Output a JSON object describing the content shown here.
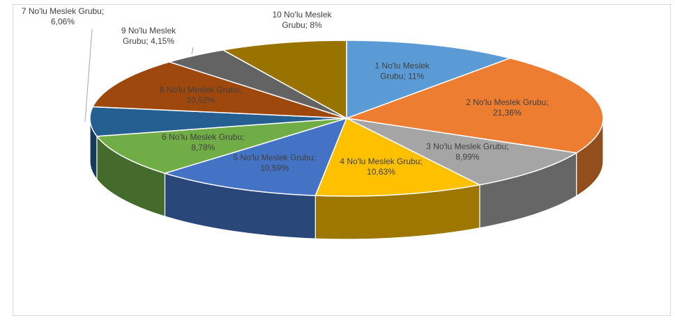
{
  "chart_data": {
    "type": "pie",
    "style": "3d",
    "title": "",
    "slices": [
      {
        "name": "1 No'lu Meslek Grubu",
        "value": 11,
        "label_line1": "1 No'lu Meslek",
        "label_line2": "Grubu; 11%",
        "color": "#5b9bd5"
      },
      {
        "name": "2 No'lu Meslek Grubu",
        "value": 21.36,
        "label_line1": "2 No'lu Meslek Grubu;",
        "label_line2": "21,36%",
        "color": "#ed7d31"
      },
      {
        "name": "3 No'lu Meslek Grubu",
        "value": 8.99,
        "label_line1": "3 No'lu Meslek Grubu;",
        "label_line2": "8,99%",
        "color": "#a5a5a5"
      },
      {
        "name": "4 No'lu Meslek Grubu",
        "value": 10.63,
        "label_line1": "4 No'lu Meslek Grubu;",
        "label_line2": "10,63%",
        "color": "#ffc000"
      },
      {
        "name": "5 No'lu Meslek Grubu",
        "value": 10.59,
        "label_line1": "5 No'lu Meslek Grubu;",
        "label_line2": "10,59%",
        "color": "#4472c4"
      },
      {
        "name": "6 No'lu Meslek Grubu",
        "value": 8.78,
        "label_line1": "6 No'lu Meslek Grubu;",
        "label_line2": "8,78%",
        "color": "#70ad47"
      },
      {
        "name": "7 No'lu Meslek Grubu",
        "value": 6.06,
        "label_line1": "7 No'lu Meslek Grubu;",
        "label_line2": "6,06%",
        "color": "#255e91"
      },
      {
        "name": "8 No'lu Meslek Grubu",
        "value": 10.52,
        "label_line1": "8 No'lu Meslek Grubu;",
        "label_line2": "10,52%",
        "color": "#9e480e"
      },
      {
        "name": "9 No'lu Meslek Grubu",
        "value": 4.15,
        "label_line1": "9 No'lu Meslek",
        "label_line2": "Grubu; 4,15%",
        "color": "#636363"
      },
      {
        "name": "10 No'lu Meslek Grubu",
        "value": 8,
        "label_line1": "10 No'lu Meslek",
        "label_line2": "Grubu; 8%",
        "color": "#997300"
      }
    ]
  }
}
